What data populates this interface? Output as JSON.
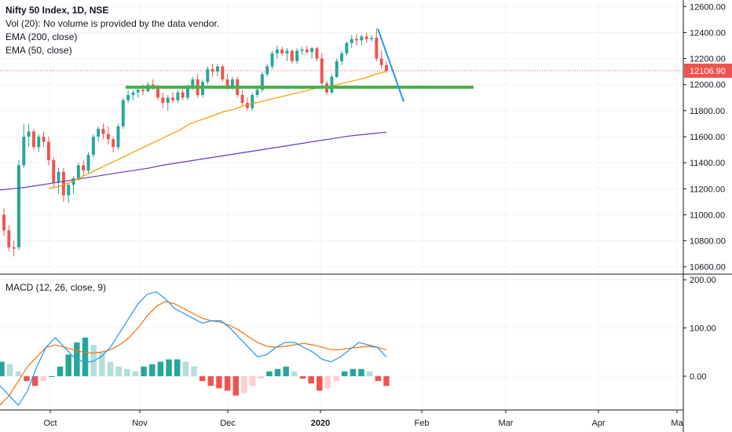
{
  "legend": {
    "title": "Nifty 50 Index, 1D, NSE",
    "vol": "Vol (20): No volume is provided by the data vendor.",
    "ema200": "EMA (200, close)",
    "ema50": "EMA (50, close)"
  },
  "macd_legend": "MACD (12, 26, close, 9)",
  "price_label": "12106.90",
  "colors": {
    "up": "#26a69a",
    "down": "#ef5350",
    "ema50": "#ff9800",
    "ema200": "#673ab7",
    "support": "#4caf50",
    "trendline": "#2196f3",
    "macd": "#2196f3",
    "signal": "#ff6d00",
    "hist_up_strong": "#26a69a",
    "hist_up_weak": "#b2dfdb",
    "hist_down_strong": "#ef5350",
    "hist_down_weak": "#ffcdd2",
    "price_tag": "#ef5350"
  },
  "chart_data": [
    {
      "type": "candlestick",
      "title": "Nifty 50 Index, 1D, NSE",
      "ylim": [
        10550,
        12650
      ],
      "y_ticks": [
        "12600.00",
        "12400.00",
        "12200.00",
        "12000.00",
        "11800.00",
        "11600.00",
        "11400.00",
        "11200.00",
        "11000.00",
        "10800.00",
        "10600.00"
      ],
      "x_ticks": [
        "Oct",
        "Nov",
        "Dec",
        "2020",
        "Feb",
        "Mar",
        "Apr",
        "Ma"
      ],
      "candles": [
        {
          "o": 11000,
          "h": 11050,
          "l": 10840,
          "c": 10880
        },
        {
          "o": 10880,
          "h": 10920,
          "l": 10720,
          "c": 10750
        },
        {
          "o": 10750,
          "h": 10800,
          "l": 10680,
          "c": 10740
        },
        {
          "o": 10750,
          "h": 11420,
          "l": 10730,
          "c": 11380
        },
        {
          "o": 11380,
          "h": 11700,
          "l": 11360,
          "c": 11600
        },
        {
          "o": 11600,
          "h": 11700,
          "l": 11520,
          "c": 11640
        },
        {
          "o": 11640,
          "h": 11660,
          "l": 11500,
          "c": 11520
        },
        {
          "o": 11520,
          "h": 11620,
          "l": 11480,
          "c": 11600
        },
        {
          "o": 11600,
          "h": 11640,
          "l": 11520,
          "c": 11560
        },
        {
          "o": 11560,
          "h": 11600,
          "l": 11380,
          "c": 11420
        },
        {
          "o": 11420,
          "h": 11440,
          "l": 11200,
          "c": 11250
        },
        {
          "o": 11250,
          "h": 11360,
          "l": 11160,
          "c": 11330
        },
        {
          "o": 11330,
          "h": 11360,
          "l": 11100,
          "c": 11150
        },
        {
          "o": 11150,
          "h": 11250,
          "l": 11090,
          "c": 11230
        },
        {
          "o": 11230,
          "h": 11300,
          "l": 11160,
          "c": 11280
        },
        {
          "o": 11280,
          "h": 11400,
          "l": 11260,
          "c": 11380
        },
        {
          "o": 11380,
          "h": 11420,
          "l": 11300,
          "c": 11340
        },
        {
          "o": 11340,
          "h": 11480,
          "l": 11320,
          "c": 11460
        },
        {
          "o": 11460,
          "h": 11620,
          "l": 11440,
          "c": 11600
        },
        {
          "o": 11600,
          "h": 11680,
          "l": 11560,
          "c": 11660
        },
        {
          "o": 11660,
          "h": 11700,
          "l": 11580,
          "c": 11620
        },
        {
          "o": 11620,
          "h": 11680,
          "l": 11540,
          "c": 11580
        },
        {
          "o": 11580,
          "h": 11600,
          "l": 11480,
          "c": 11520
        },
        {
          "o": 11520,
          "h": 11700,
          "l": 11500,
          "c": 11680
        },
        {
          "o": 11680,
          "h": 11900,
          "l": 11660,
          "c": 11880
        },
        {
          "o": 11880,
          "h": 11960,
          "l": 11860,
          "c": 11920
        },
        {
          "o": 11920,
          "h": 11960,
          "l": 11880,
          "c": 11940
        },
        {
          "o": 11940,
          "h": 11980,
          "l": 11900,
          "c": 11960
        },
        {
          "o": 11960,
          "h": 12000,
          "l": 11920,
          "c": 11950
        },
        {
          "o": 11950,
          "h": 12020,
          "l": 11940,
          "c": 12000
        },
        {
          "o": 12000,
          "h": 12040,
          "l": 11960,
          "c": 11990
        },
        {
          "o": 11990,
          "h": 12000,
          "l": 11880,
          "c": 11900
        },
        {
          "o": 11900,
          "h": 11940,
          "l": 11820,
          "c": 11860
        },
        {
          "o": 11860,
          "h": 11920,
          "l": 11800,
          "c": 11900
        },
        {
          "o": 11900,
          "h": 11940,
          "l": 11860,
          "c": 11880
        },
        {
          "o": 11880,
          "h": 11960,
          "l": 11860,
          "c": 11940
        },
        {
          "o": 11940,
          "h": 11980,
          "l": 11880,
          "c": 11900
        },
        {
          "o": 11900,
          "h": 12000,
          "l": 11880,
          "c": 11980
        },
        {
          "o": 11980,
          "h": 12060,
          "l": 11960,
          "c": 12040
        },
        {
          "o": 12040,
          "h": 12080,
          "l": 11900,
          "c": 11920
        },
        {
          "o": 11920,
          "h": 12040,
          "l": 11900,
          "c": 12020
        },
        {
          "o": 12020,
          "h": 12140,
          "l": 12000,
          "c": 12120
        },
        {
          "o": 12120,
          "h": 12160,
          "l": 12060,
          "c": 12100
        },
        {
          "o": 12100,
          "h": 12160,
          "l": 12060,
          "c": 12140
        },
        {
          "o": 12140,
          "h": 12150,
          "l": 12020,
          "c": 12040
        },
        {
          "o": 12040,
          "h": 12080,
          "l": 11960,
          "c": 11980
        },
        {
          "o": 11980,
          "h": 12060,
          "l": 11960,
          "c": 12040
        },
        {
          "o": 12040,
          "h": 12060,
          "l": 11900,
          "c": 11920
        },
        {
          "o": 11920,
          "h": 11960,
          "l": 11840,
          "c": 11860
        },
        {
          "o": 11860,
          "h": 11900,
          "l": 11800,
          "c": 11820
        },
        {
          "o": 11820,
          "h": 11940,
          "l": 11800,
          "c": 11920
        },
        {
          "o": 11920,
          "h": 11980,
          "l": 11900,
          "c": 11960
        },
        {
          "o": 11960,
          "h": 12100,
          "l": 11940,
          "c": 12080
        },
        {
          "o": 12080,
          "h": 12160,
          "l": 12060,
          "c": 12140
        },
        {
          "o": 12140,
          "h": 12260,
          "l": 12120,
          "c": 12240
        },
        {
          "o": 12240,
          "h": 12300,
          "l": 12200,
          "c": 12270
        },
        {
          "o": 12270,
          "h": 12290,
          "l": 12220,
          "c": 12240
        },
        {
          "o": 12240,
          "h": 12280,
          "l": 12180,
          "c": 12260
        },
        {
          "o": 12260,
          "h": 12270,
          "l": 12160,
          "c": 12180
        },
        {
          "o": 12180,
          "h": 12280,
          "l": 12160,
          "c": 12260
        },
        {
          "o": 12260,
          "h": 12290,
          "l": 12230,
          "c": 12270
        },
        {
          "o": 12270,
          "h": 12300,
          "l": 12240,
          "c": 12250
        },
        {
          "o": 12250,
          "h": 12290,
          "l": 12200,
          "c": 12280
        },
        {
          "o": 12280,
          "h": 12290,
          "l": 12180,
          "c": 12200
        },
        {
          "o": 12200,
          "h": 12240,
          "l": 11990,
          "c": 12010
        },
        {
          "o": 12010,
          "h": 12030,
          "l": 11920,
          "c": 11940
        },
        {
          "o": 11940,
          "h": 12080,
          "l": 11930,
          "c": 12060
        },
        {
          "o": 12060,
          "h": 12200,
          "l": 12050,
          "c": 12180
        },
        {
          "o": 12180,
          "h": 12260,
          "l": 12150,
          "c": 12240
        },
        {
          "o": 12240,
          "h": 12330,
          "l": 12220,
          "c": 12320
        },
        {
          "o": 12320,
          "h": 12380,
          "l": 12280,
          "c": 12350
        },
        {
          "o": 12350,
          "h": 12390,
          "l": 12300,
          "c": 12340
        },
        {
          "o": 12340,
          "h": 12380,
          "l": 12300,
          "c": 12370
        },
        {
          "o": 12370,
          "h": 12400,
          "l": 12320,
          "c": 12350
        },
        {
          "o": 12350,
          "h": 12380,
          "l": 12330,
          "c": 12360
        },
        {
          "o": 12360,
          "h": 12430,
          "l": 12180,
          "c": 12200
        },
        {
          "o": 12200,
          "h": 12260,
          "l": 12120,
          "c": 12150
        },
        {
          "o": 12150,
          "h": 12180,
          "l": 12090,
          "c": 12107
        }
      ],
      "ema50": [
        11200,
        11220,
        11250,
        11290,
        11330,
        11370,
        11410,
        11450,
        11490,
        11530,
        11570,
        11610,
        11650,
        11700,
        11730,
        11760,
        11790,
        11810,
        11840,
        11860,
        11880,
        11900,
        11920,
        11940,
        11960,
        11980,
        11990,
        12010,
        12030,
        12050,
        12080,
        12100
      ],
      "ema200": [
        11190,
        11200,
        11210,
        11225,
        11240,
        11255,
        11270,
        11285,
        11300,
        11315,
        11330,
        11345,
        11360,
        11380,
        11395,
        11410,
        11425,
        11440,
        11455,
        11470,
        11485,
        11500,
        11515,
        11530,
        11545,
        11560,
        11575,
        11590,
        11605,
        11615,
        11625,
        11635
      ],
      "support_level": 11980,
      "trendline": [
        {
          "from": 12430,
          "to": 11870
        }
      ]
    },
    {
      "type": "macd",
      "title": "MACD (12, 26, close, 9)",
      "ylim": [
        -70,
        210
      ],
      "y_ticks": [
        "200.00",
        "100.00",
        "0.00"
      ],
      "macd": [
        -20,
        -40,
        -60,
        -30,
        20,
        60,
        80,
        60,
        40,
        30,
        30,
        40,
        60,
        90,
        120,
        150,
        170,
        175,
        160,
        140,
        130,
        120,
        110,
        115,
        115,
        100,
        80,
        60,
        40,
        45,
        60,
        70,
        70,
        60,
        50,
        35,
        30,
        40,
        55,
        70,
        65,
        60,
        40
      ],
      "signal": [
        -60,
        -40,
        -10,
        20,
        40,
        60,
        65,
        60,
        55,
        50,
        48,
        50,
        55,
        65,
        80,
        100,
        125,
        145,
        155,
        150,
        140,
        130,
        120,
        115,
        112,
        105,
        95,
        82,
        70,
        62,
        60,
        62,
        65,
        68,
        65,
        60,
        55,
        55,
        58,
        60,
        62,
        60,
        55
      ],
      "histogram": [
        30,
        25,
        10,
        -10,
        -20,
        -10,
        0,
        20,
        45,
        70,
        80,
        65,
        50,
        30,
        20,
        15,
        10,
        20,
        25,
        30,
        35,
        35,
        30,
        20,
        -10,
        -20,
        -25,
        -30,
        -40,
        -35,
        -20,
        -5,
        10,
        15,
        20,
        10,
        -5,
        -15,
        -30,
        -25,
        -10,
        10,
        15,
        15,
        10,
        -10,
        -20
      ]
    }
  ]
}
